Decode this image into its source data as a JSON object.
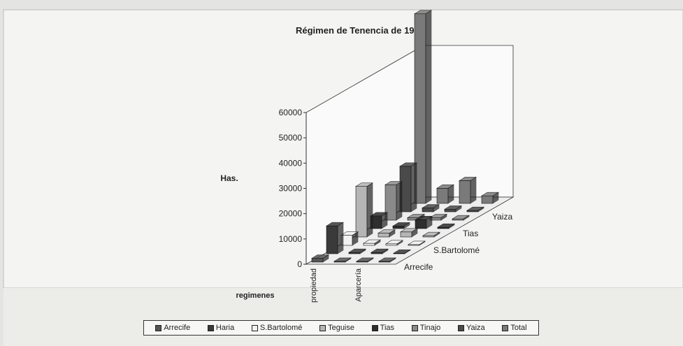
{
  "chart_data": {
    "type": "bar3d",
    "title": "Régimen de Tenencia de 1962",
    "y_label": "Has.",
    "x_label": "regimenes",
    "categories": [
      "propiedad",
      null,
      "Aparcería",
      null
    ],
    "series": [
      {
        "name": "Arrecife",
        "color": "#555555",
        "values": [
          1500,
          300,
          300,
          300
        ]
      },
      {
        "name": "Haria",
        "color": "#3a3a3a",
        "values": [
          11000,
          500,
          500,
          200
        ]
      },
      {
        "name": "S.Bartolomé",
        "color": "#f2f2f2",
        "values": [
          4000,
          800,
          600,
          300
        ]
      },
      {
        "name": "Teguise",
        "color": "#b5b5b5",
        "values": [
          20000,
          1500,
          2000,
          500
        ]
      },
      {
        "name": "Tias",
        "color": "#2e2e2e",
        "values": [
          5000,
          1000,
          3500,
          500
        ]
      },
      {
        "name": "Tinajo",
        "color": "#8a8a8a",
        "values": [
          14000,
          1000,
          1000,
          500
        ]
      },
      {
        "name": "Yaiza",
        "color": "#4a4a4a",
        "values": [
          18000,
          1500,
          1000,
          500
        ]
      },
      {
        "name": "Total",
        "color": "#7a7a7a",
        "values": [
          75000,
          6000,
          9000,
          3000
        ]
      }
    ],
    "depth_labels": [
      "Arrecife",
      "S.Bartolomé",
      "Tias",
      "Yaiza"
    ],
    "ylim": [
      0,
      60000
    ],
    "yticks": [
      0,
      10000,
      20000,
      30000,
      40000,
      50000,
      60000
    ]
  }
}
